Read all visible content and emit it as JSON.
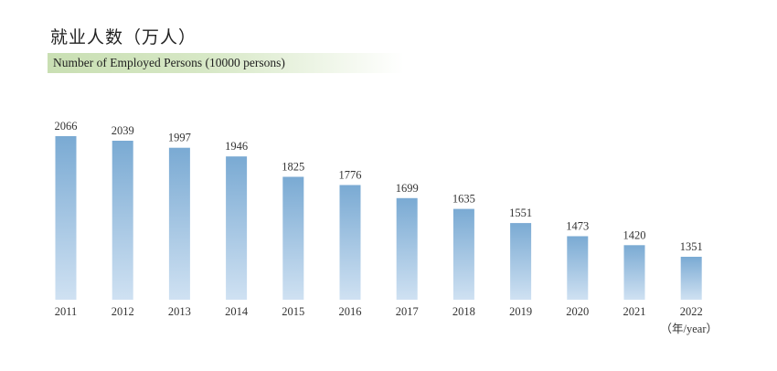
{
  "title_cn": "就业人数（万人）",
  "subtitle_en": "Number of Employed Persons (10000 persons)",
  "colors": {
    "bar_top": "#7aaad3",
    "bar_bottom": "#cfe1f2",
    "subtitle_band": "#c9dfb3"
  },
  "chart_data": {
    "type": "bar",
    "categories": [
      "2011",
      "2012",
      "2013",
      "2014",
      "2015",
      "2016",
      "2017",
      "2018",
      "2019",
      "2020",
      "2021",
      "2022"
    ],
    "values": [
      2066,
      2039,
      1997,
      1946,
      1825,
      1776,
      1699,
      1635,
      1551,
      1473,
      1420,
      1351
    ],
    "title": "就业人数（万人）",
    "subtitle": "Number of Employed Persons (10000 persons)",
    "xlabel": "（年/year）",
    "ylabel": "",
    "grid": false,
    "legend": "none"
  }
}
